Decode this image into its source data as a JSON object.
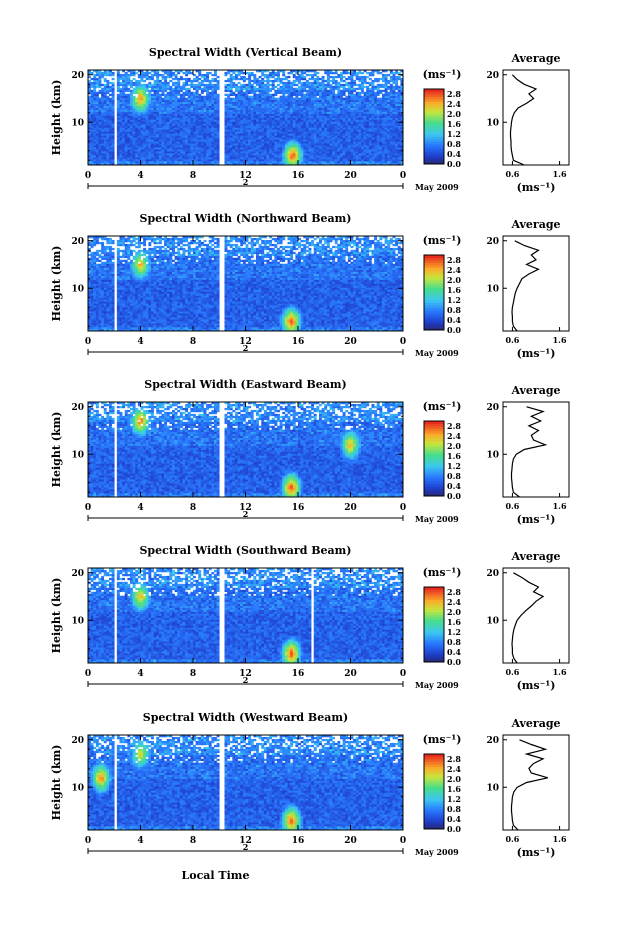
{
  "figure": {
    "xlabel_bottom": "Local Time",
    "date_label": "May 2009",
    "day_label": "2",
    "colorbar_unit": "(ms⁻¹)",
    "avg_xlabel": "(ms⁻¹)"
  },
  "chart_data": [
    {
      "type": "heatmap",
      "title": "Spectral Width (Vertical Beam)",
      "ylabel": "Height (km)",
      "yticks": [
        "10",
        "20"
      ],
      "xticks": [
        "0",
        "4",
        "8",
        "12",
        "16",
        "20",
        "0"
      ],
      "xlim": [
        0,
        24
      ],
      "ylim": [
        1,
        21
      ],
      "colorbar_ticks": [
        "0.0",
        "0.4",
        "0.8",
        "1.2",
        "1.6",
        "2.0",
        "2.4",
        "2.8"
      ],
      "colorbar_range": [
        0,
        3.0
      ],
      "data_gaps_hours": [
        [
          2.0,
          2.3
        ],
        [
          10.1,
          10.4
        ]
      ],
      "hotspots": [
        {
          "hour": 4.0,
          "height": 15,
          "value": 2.6
        },
        {
          "hour": 15.6,
          "height": 3,
          "value": 2.8
        }
      ],
      "average_profile": {
        "title": "Average",
        "xticks": [
          "0.6",
          "1.6"
        ],
        "yticks": [
          "10",
          "20"
        ],
        "xlim": [
          0.4,
          1.8
        ],
        "height": [
          1,
          2,
          3,
          4,
          5,
          6,
          7,
          8,
          9,
          10,
          11,
          12,
          13,
          14,
          15,
          16,
          17,
          18,
          19,
          20
        ],
        "value": [
          0.85,
          0.62,
          0.6,
          0.58,
          0.57,
          0.57,
          0.56,
          0.56,
          0.57,
          0.58,
          0.6,
          0.64,
          0.72,
          0.9,
          1.05,
          0.95,
          1.1,
          0.85,
          0.7,
          0.6
        ]
      }
    },
    {
      "type": "heatmap",
      "title": "Spectral Width (Northward Beam)",
      "ylabel": "Height (km)",
      "yticks": [
        "10",
        "20"
      ],
      "xticks": [
        "0",
        "4",
        "8",
        "12",
        "16",
        "20",
        "0"
      ],
      "xlim": [
        0,
        24
      ],
      "ylim": [
        1,
        21
      ],
      "colorbar_ticks": [
        "0.0",
        "0.4",
        "0.8",
        "1.2",
        "1.6",
        "2.0",
        "2.4",
        "2.8"
      ],
      "colorbar_range": [
        0,
        3.0
      ],
      "data_gaps_hours": [
        [
          2.0,
          2.3
        ],
        [
          10.1,
          10.4
        ]
      ],
      "hotspots": [
        {
          "hour": 4.0,
          "height": 15,
          "value": 2.4
        },
        {
          "hour": 15.5,
          "height": 3,
          "value": 2.8
        }
      ],
      "average_profile": {
        "title": "Average",
        "xticks": [
          "0.6",
          "1.6"
        ],
        "yticks": [
          "10",
          "20"
        ],
        "xlim": [
          0.4,
          1.8
        ],
        "height": [
          1,
          2,
          3,
          4,
          5,
          6,
          7,
          8,
          9,
          10,
          11,
          12,
          13,
          14,
          15,
          16,
          17,
          18,
          19,
          20
        ],
        "value": [
          0.7,
          0.62,
          0.6,
          0.6,
          0.59,
          0.6,
          0.62,
          0.64,
          0.66,
          0.7,
          0.75,
          0.8,
          0.95,
          1.15,
          0.9,
          1.1,
          1.0,
          1.15,
          0.85,
          0.65
        ]
      }
    },
    {
      "type": "heatmap",
      "title": "Spectral Width (Eastward Beam)",
      "ylabel": "Height (km)",
      "yticks": [
        "10",
        "20"
      ],
      "xticks": [
        "0",
        "4",
        "8",
        "12",
        "16",
        "20",
        "0"
      ],
      "xlim": [
        0,
        24
      ],
      "ylim": [
        1,
        21
      ],
      "colorbar_ticks": [
        "0.0",
        "0.4",
        "0.8",
        "1.2",
        "1.6",
        "2.0",
        "2.4",
        "2.8"
      ],
      "colorbar_range": [
        0,
        3.0
      ],
      "data_gaps_hours": [
        [
          2.0,
          2.3
        ],
        [
          10.1,
          10.4
        ]
      ],
      "hotspots": [
        {
          "hour": 4.0,
          "height": 17,
          "value": 2.6
        },
        {
          "hour": 15.5,
          "height": 3,
          "value": 2.8
        },
        {
          "hour": 20,
          "height": 12,
          "value": 2.4
        }
      ],
      "average_profile": {
        "title": "Average",
        "xticks": [
          "0.6",
          "1.6"
        ],
        "yticks": [
          "10",
          "20"
        ],
        "xlim": [
          0.4,
          1.8
        ],
        "height": [
          1,
          2,
          3,
          4,
          5,
          6,
          7,
          8,
          9,
          10,
          11,
          12,
          13,
          14,
          15,
          16,
          17,
          18,
          19,
          20
        ],
        "value": [
          0.75,
          0.62,
          0.6,
          0.59,
          0.58,
          0.58,
          0.59,
          0.6,
          0.62,
          0.68,
          0.85,
          1.3,
          1.05,
          1.0,
          1.15,
          0.95,
          1.2,
          1.0,
          1.25,
          0.9
        ]
      }
    },
    {
      "type": "heatmap",
      "title": "Spectral Width (Southward Beam)",
      "ylabel": "Height (km)",
      "yticks": [
        "10",
        "20"
      ],
      "xticks": [
        "0",
        "4",
        "8",
        "12",
        "16",
        "20",
        "0"
      ],
      "xlim": [
        0,
        24
      ],
      "ylim": [
        1,
        21
      ],
      "colorbar_ticks": [
        "0.0",
        "0.4",
        "0.8",
        "1.2",
        "1.6",
        "2.0",
        "2.4",
        "2.8"
      ],
      "colorbar_range": [
        0,
        3.0
      ],
      "data_gaps_hours": [
        [
          2.0,
          2.3
        ],
        [
          10.1,
          10.4
        ],
        [
          17.0,
          17.2
        ]
      ],
      "hotspots": [
        {
          "hour": 4.0,
          "height": 15,
          "value": 2.4
        },
        {
          "hour": 15.5,
          "height": 3,
          "value": 2.8
        }
      ],
      "average_profile": {
        "title": "Average",
        "xticks": [
          "0.6",
          "1.6"
        ],
        "yticks": [
          "10",
          "20"
        ],
        "xlim": [
          0.4,
          1.8
        ],
        "height": [
          1,
          2,
          3,
          4,
          5,
          6,
          7,
          8,
          9,
          10,
          11,
          12,
          13,
          14,
          15,
          16,
          17,
          18,
          19,
          20
        ],
        "value": [
          0.7,
          0.63,
          0.6,
          0.6,
          0.59,
          0.6,
          0.61,
          0.63,
          0.66,
          0.7,
          0.78,
          0.88,
          1.0,
          1.1,
          1.25,
          1.05,
          1.15,
          0.95,
          0.8,
          0.62
        ]
      }
    },
    {
      "type": "heatmap",
      "title": "Spectral Width (Westward Beam)",
      "ylabel": "Height (km)",
      "yticks": [
        "10",
        "20"
      ],
      "xticks": [
        "0",
        "4",
        "8",
        "12",
        "16",
        "20",
        "0"
      ],
      "xlim": [
        0,
        24
      ],
      "ylim": [
        1,
        21
      ],
      "colorbar_ticks": [
        "0.0",
        "0.4",
        "0.8",
        "1.2",
        "1.6",
        "2.0",
        "2.4",
        "2.8"
      ],
      "colorbar_range": [
        0,
        3.0
      ],
      "data_gaps_hours": [
        [
          2.0,
          2.3
        ],
        [
          10.1,
          10.4
        ]
      ],
      "hotspots": [
        {
          "hour": 4.0,
          "height": 17,
          "value": 2.2
        },
        {
          "hour": 15.5,
          "height": 3,
          "value": 2.8
        },
        {
          "hour": 1,
          "height": 12,
          "value": 2.6
        }
      ],
      "average_profile": {
        "title": "Average",
        "xticks": [
          "0.6",
          "1.6"
        ],
        "yticks": [
          "10",
          "20"
        ],
        "xlim": [
          0.4,
          1.8
        ],
        "height": [
          1,
          2,
          3,
          4,
          5,
          6,
          7,
          8,
          9,
          10,
          11,
          12,
          13,
          14,
          15,
          16,
          17,
          18,
          19,
          20
        ],
        "value": [
          0.72,
          0.62,
          0.6,
          0.59,
          0.58,
          0.58,
          0.59,
          0.6,
          0.63,
          0.7,
          0.9,
          1.35,
          1.0,
          0.95,
          1.05,
          1.25,
          0.9,
          1.3,
          1.0,
          0.75
        ]
      }
    }
  ]
}
